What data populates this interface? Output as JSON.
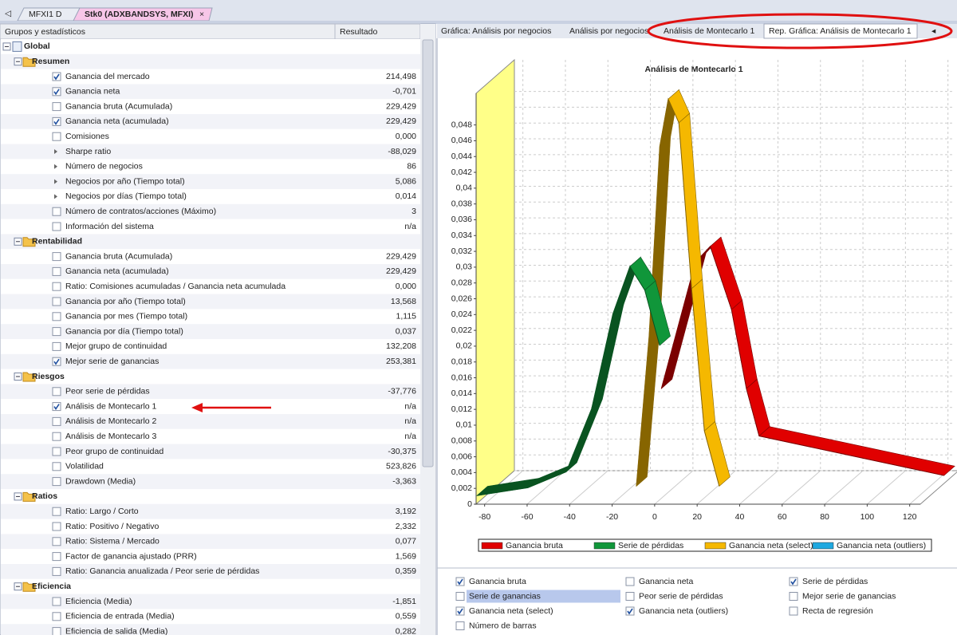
{
  "tabs": [
    "MFXI1 D",
    "Stk0 (ADXBANDSYS, MFXI)"
  ],
  "table": {
    "columns": [
      "Grupos y estadísticos",
      "Resultado"
    ],
    "rows": [
      {
        "label": "Global",
        "kind": "group",
        "level": 0
      },
      {
        "label": "Resumen",
        "kind": "group",
        "level": 1
      },
      {
        "label": "Ganancia del mercado",
        "value": "214,498",
        "kind": "checked"
      },
      {
        "label": "Ganancia neta",
        "value": "-0,701",
        "kind": "checked"
      },
      {
        "label": "Ganancia bruta (Acumulada)",
        "value": "229,429",
        "kind": "unchecked"
      },
      {
        "label": "Ganancia neta (acumulada)",
        "value": "229,429",
        "kind": "checked"
      },
      {
        "label": "Comisiones",
        "value": "0,000",
        "kind": "unchecked"
      },
      {
        "label": "Sharpe ratio",
        "value": "-88,029",
        "kind": "bullet"
      },
      {
        "label": "Número de negocios",
        "value": "86",
        "kind": "bullet"
      },
      {
        "label": "Negocios por año (Tiempo total)",
        "value": "5,086",
        "kind": "bullet"
      },
      {
        "label": "Negocios por días (Tiempo total)",
        "value": "0,014",
        "kind": "bullet"
      },
      {
        "label": "Número de contratos/acciones (Máximo)",
        "value": "3",
        "kind": "unchecked"
      },
      {
        "label": "Información del sistema",
        "value": "n/a",
        "kind": "unchecked"
      },
      {
        "label": "Rentabilidad",
        "kind": "group",
        "level": 1
      },
      {
        "label": "Ganancia bruta (Acumulada)",
        "value": "229,429",
        "kind": "unchecked"
      },
      {
        "label": "Ganancia neta (acumulada)",
        "value": "229,429",
        "kind": "unchecked"
      },
      {
        "label": "Ratio: Comisiones acumuladas / Ganancia neta acumulada",
        "value": "0,000",
        "kind": "unchecked"
      },
      {
        "label": "Ganancia por año (Tiempo total)",
        "value": "13,568",
        "kind": "unchecked"
      },
      {
        "label": "Ganancia por mes (Tiempo total)",
        "value": "1,115",
        "kind": "unchecked"
      },
      {
        "label": "Ganancia por día (Tiempo total)",
        "value": "0,037",
        "kind": "unchecked"
      },
      {
        "label": "Mejor grupo de continuidad",
        "value": "132,208",
        "kind": "unchecked"
      },
      {
        "label": "Mejor serie de ganancias",
        "value": "253,381",
        "kind": "checked"
      },
      {
        "label": "Riesgos",
        "kind": "group",
        "level": 1
      },
      {
        "label": "Peor serie de pérdidas",
        "value": "-37,776",
        "kind": "unchecked"
      },
      {
        "label": "Análisis de Montecarlo 1",
        "value": "n/a",
        "kind": "checked"
      },
      {
        "label": "Análisis de Montecarlo 2",
        "value": "n/a",
        "kind": "unchecked"
      },
      {
        "label": "Análisis de Montecarlo 3",
        "value": "n/a",
        "kind": "unchecked"
      },
      {
        "label": "Peor grupo de continuidad",
        "value": "-30,375",
        "kind": "unchecked"
      },
      {
        "label": "Volatilidad",
        "value": "523,826",
        "kind": "unchecked"
      },
      {
        "label": "Drawdown (Media)",
        "value": "-3,363",
        "kind": "unchecked"
      },
      {
        "label": "Ratios",
        "kind": "group",
        "level": 1
      },
      {
        "label": "Ratio: Largo / Corto",
        "value": "3,192",
        "kind": "unchecked"
      },
      {
        "label": "Ratio: Positivo / Negativo",
        "value": "2,332",
        "kind": "unchecked"
      },
      {
        "label": "Ratio: Sistema / Mercado",
        "value": "0,077",
        "kind": "unchecked"
      },
      {
        "label": "Factor de ganancia ajustado (PRR)",
        "value": "1,569",
        "kind": "unchecked"
      },
      {
        "label": "Ratio: Ganancia anualizada / Peor serie de pérdidas",
        "value": "0,359",
        "kind": "unchecked"
      },
      {
        "label": "Eficiencia",
        "kind": "group",
        "level": 1
      },
      {
        "label": "Eficiencia (Media)",
        "value": "-1,851",
        "kind": "unchecked"
      },
      {
        "label": "Eficiencia de entrada (Media)",
        "value": "0,559",
        "kind": "unchecked"
      },
      {
        "label": "Eficiencia de salida (Media)",
        "value": "0,282",
        "kind": "unchecked"
      }
    ]
  },
  "chart_tabs": [
    "Gráfica: Análisis por negocios",
    "Análisis por negocios",
    "Análisis de Montecarlo 1",
    "Rep. Gráfica: Análisis de Montecarlo 1"
  ],
  "chart": {
    "type": "ribbon3d",
    "title": "Análisis de Montecarlo 1",
    "xlim": [
      -84,
      125
    ],
    "xticks": [
      -80,
      -60,
      -40,
      -20,
      0,
      20,
      40,
      60,
      80,
      100,
      120
    ],
    "ylim": [
      0,
      0.052
    ],
    "yticks": [
      0,
      {
        "value": 0.002,
        "label": "0,002"
      },
      {
        "value": 0.004,
        "label": "0,004"
      },
      {
        "value": 0.006,
        "label": "0,006"
      },
      {
        "value": 0.008,
        "label": "0,008"
      },
      {
        "value": 0.01,
        "label": "0,01"
      },
      {
        "value": 0.012,
        "label": "0,012"
      },
      {
        "value": 0.014,
        "label": "0,014"
      },
      {
        "value": 0.016,
        "label": "0,016"
      },
      {
        "value": 0.018,
        "label": "0,018"
      },
      {
        "value": 0.02,
        "label": "0,02"
      },
      {
        "value": 0.022,
        "label": "0,022"
      },
      {
        "value": 0.024,
        "label": "0,024"
      },
      {
        "value": 0.026,
        "label": "0,026"
      },
      {
        "value": 0.028,
        "label": "0,028"
      },
      {
        "value": 0.03,
        "label": "0,03"
      },
      {
        "value": 0.032,
        "label": "0,032"
      },
      {
        "value": 0.034,
        "label": "0,034"
      },
      {
        "value": 0.036,
        "label": "0,036"
      },
      {
        "value": 0.038,
        "label": "0,038"
      },
      {
        "value": 0.04,
        "label": "0,04"
      },
      {
        "value": 0.042,
        "label": "0,042"
      },
      {
        "value": 0.044,
        "label": "0,044"
      },
      {
        "value": 0.046,
        "label": "0,046"
      },
      {
        "value": 0.048,
        "label": "0,048"
      }
    ],
    "series": [
      {
        "name": "Ganancia bruta",
        "color": "#e00000",
        "x": [
          -8,
          0,
          8,
          15,
          25,
          32,
          38,
          125
        ],
        "values": [
          0.012,
          0.02,
          0.028,
          0.03,
          0.022,
          0.012,
          0.006,
          0.001
        ]
      },
      {
        "name": "Serie de pérdidas",
        "color": "#10963a",
        "x": [
          -84,
          -60,
          -42,
          -30,
          -20,
          -12,
          -5,
          2
        ],
        "values": [
          0.001,
          0.002,
          0.004,
          0.012,
          0.024,
          0.03,
          0.027,
          0.02
        ]
      },
      {
        "name": "Ganancia neta (select)",
        "color": "#f5b800",
        "x": [
          -14,
          -8,
          -3,
          1,
          6,
          12,
          18,
          25
        ],
        "values": [
          0.001,
          0.02,
          0.044,
          0.05,
          0.047,
          0.026,
          0.008,
          0.001
        ]
      },
      {
        "name": "Ganancia neta (outliers)",
        "color": "#1ea8e0",
        "x": [],
        "values": []
      }
    ]
  },
  "options": [
    {
      "label": "Ganancia bruta",
      "checked": true
    },
    {
      "label": "Ganancia neta",
      "checked": false
    },
    {
      "label": "Serie de pérdidas",
      "checked": true
    },
    {
      "label": "Serie de ganancias",
      "checked": false,
      "selected": true
    },
    {
      "label": "Peor serie de pérdidas",
      "checked": false
    },
    {
      "label": "Mejor serie de ganancias",
      "checked": false
    },
    {
      "label": "Ganancia neta (select)",
      "checked": true
    },
    {
      "label": "Ganancia neta (outliers)",
      "checked": true
    },
    {
      "label": "Recta de regresión",
      "checked": false
    },
    {
      "label": "Número de barras",
      "checked": false
    }
  ]
}
